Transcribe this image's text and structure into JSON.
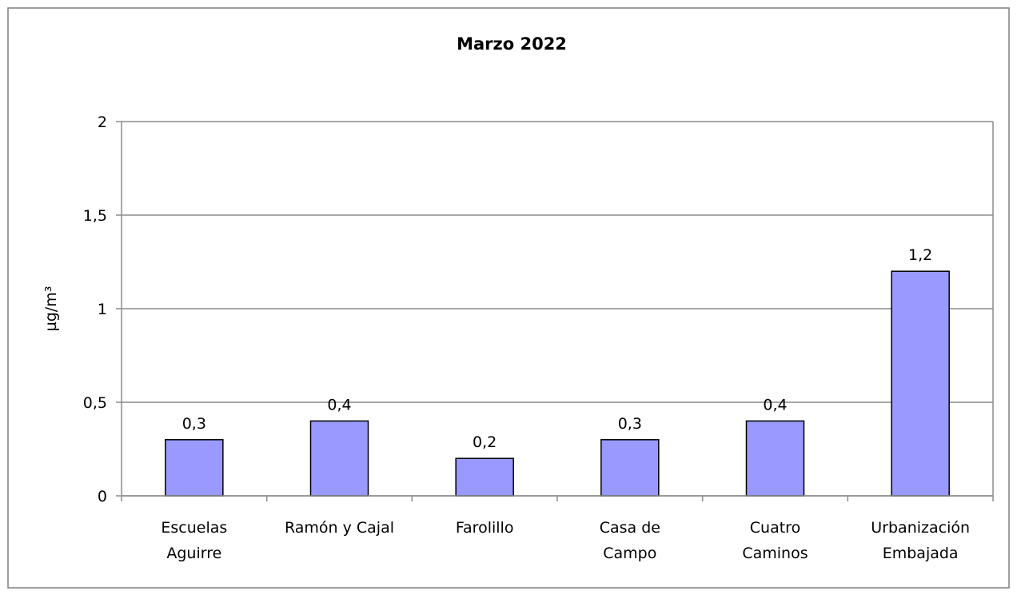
{
  "chart_data": {
    "type": "bar",
    "title": "Marzo 2022",
    "y_label": "µg/m³",
    "categories": [
      "Escuelas\nAguirre",
      "Ramón y Cajal",
      "Farolillo",
      "Casa de\nCampo",
      "Cuatro\nCaminos",
      "Urbanización\nEmbajada"
    ],
    "values": [
      0.3,
      0.4,
      0.2,
      0.3,
      0.4,
      1.2
    ],
    "value_labels": [
      "0,3",
      "0,4",
      "0,2",
      "0,3",
      "0,4",
      "1,2"
    ],
    "color": "#9999ff",
    "ylim": [
      0,
      2
    ],
    "yticks": [
      0,
      {
        "value": 0.5,
        "label": "0,5"
      },
      1,
      {
        "value": 1.5,
        "label": "1,5"
      },
      2
    ],
    "grid": true
  }
}
